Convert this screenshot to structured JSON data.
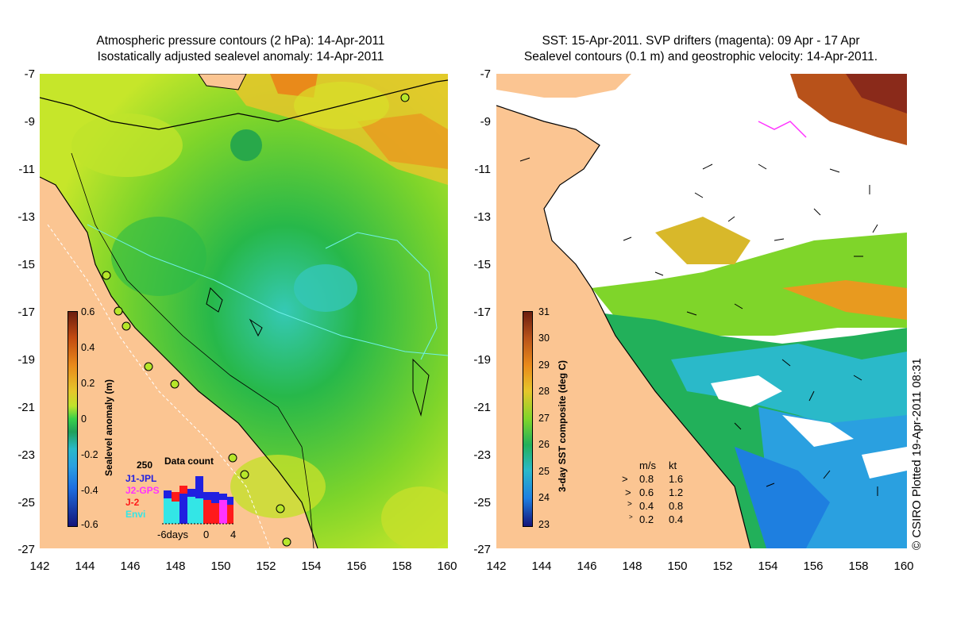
{
  "left_panel": {
    "title_line1": "Atmospheric pressure contours (2 hPa): 14-Apr-2011",
    "title_line2": "Isostatically adjusted sealevel anomaly: 14-Apr-2011",
    "colorbar": {
      "label": "Sealevel anomaly (m)",
      "ticks": [
        "0.6",
        "0.4",
        "0.2",
        "0",
        "-0.2",
        "-0.4",
        "-0.6"
      ]
    },
    "data_count": {
      "title": "Data count",
      "max_label": "250",
      "series": [
        {
          "name": "J1-JPL",
          "color": "#2020e0"
        },
        {
          "name": "J2-GPS",
          "color": "#ff33ff"
        },
        {
          "name": "J-2",
          "color": "#ff1a1a"
        },
        {
          "name": "Envi",
          "color": "#33e6e6"
        }
      ],
      "x_ticks": [
        "-6days",
        "0",
        "4"
      ]
    }
  },
  "right_panel": {
    "title_line1": "SST: 15-Apr-2011. SVP drifters (magenta): 09 Apr - 17 Apr",
    "title_line2": "Sealevel contours (0.1 m) and geostrophic velocity: 14-Apr-2011.",
    "colorbar": {
      "label": "3-day SST composite (deg C)",
      "ticks": [
        "31",
        "30",
        "29",
        "28",
        "27",
        "26",
        "25",
        "24",
        "23"
      ]
    },
    "velocity_legend": {
      "header_ms": "m/s",
      "header_kt": "kt",
      "rows": [
        {
          "ms": "0.8",
          "kt": "1.6"
        },
        {
          "ms": "0.6",
          "kt": "1.2"
        },
        {
          "ms": "0.4",
          "kt": "0.8"
        },
        {
          "ms": "0.2",
          "kt": "0.4"
        }
      ]
    },
    "credit": "© CSIRO Plotted 19-Apr-2011 08:31"
  },
  "axes": {
    "y_ticks": [
      "-7",
      "-9",
      "-11",
      "-13",
      "-15",
      "-17",
      "-19",
      "-21",
      "-23",
      "-25",
      "-27"
    ],
    "x_ticks": [
      "142",
      "144",
      "146",
      "148",
      "150",
      "152",
      "154",
      "156",
      "158",
      "160"
    ]
  },
  "colors": {
    "land": "#fbc592",
    "coast": "#000000",
    "sst_cloud": "#ffffff"
  }
}
